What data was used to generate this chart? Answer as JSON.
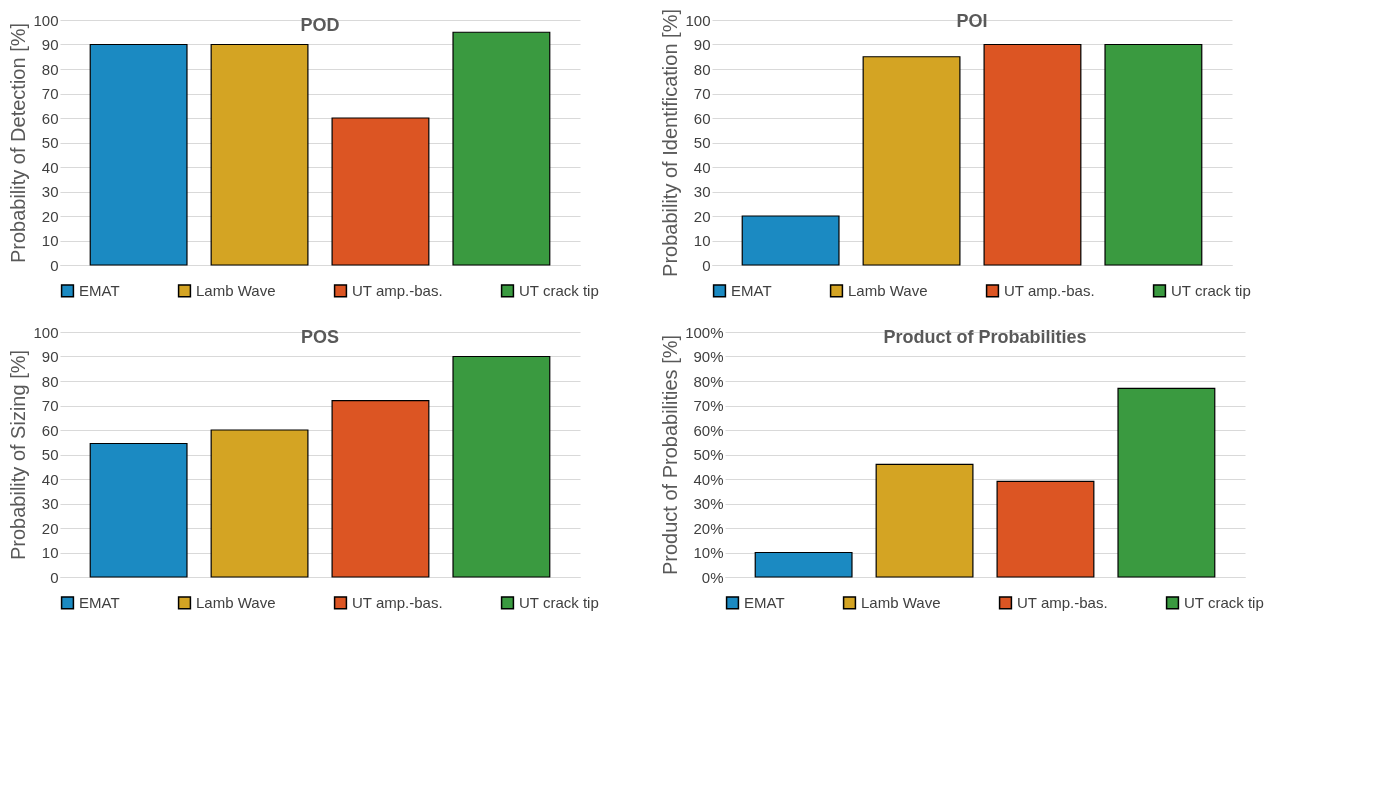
{
  "chart_data": [
    {
      "type": "bar",
      "title": "POD",
      "ylabel": "Probability of Detection [%]",
      "categories": [
        null
      ],
      "ylim": [
        0,
        100
      ],
      "yticks": [
        0,
        10,
        20,
        30,
        40,
        50,
        60,
        70,
        80,
        90,
        100
      ],
      "grid": "y",
      "legend": "bottom",
      "tick_labels": "y",
      "series": [
        {
          "name": "EMAT",
          "color": "#1b8ac2",
          "values": [
            90
          ]
        },
        {
          "name": "Lamb Wave",
          "color": "#d4a423",
          "values": [
            90
          ]
        },
        {
          "name": "UT amp.-bas.",
          "color": "#dc5523",
          "values": [
            60
          ]
        },
        {
          "name": "UT crack tip",
          "color": "#3a9a40",
          "values": [
            95
          ]
        }
      ]
    },
    {
      "type": "bar",
      "title": "POI",
      "ylabel": "Probability of Identification [%]",
      "categories": [
        null
      ],
      "ylim": [
        0,
        100
      ],
      "yticks": [
        0,
        10,
        20,
        30,
        40,
        50,
        60,
        70,
        80,
        90,
        100
      ],
      "grid": "y",
      "legend": "bottom",
      "tick_labels": "y",
      "series": [
        {
          "name": "EMAT",
          "color": "#1b8ac2",
          "values": [
            20
          ]
        },
        {
          "name": "Lamb Wave",
          "color": "#d4a423",
          "values": [
            85
          ]
        },
        {
          "name": "UT amp.-bas.",
          "color": "#dc5523",
          "values": [
            90
          ]
        },
        {
          "name": "UT crack tip",
          "color": "#3a9a40",
          "values": [
            90
          ]
        }
      ]
    },
    {
      "type": "bar",
      "title": "POS",
      "ylabel": "Probability of Sizing [%]",
      "categories": [
        null
      ],
      "ylim": [
        0,
        100
      ],
      "yticks": [
        0,
        10,
        20,
        30,
        40,
        50,
        60,
        70,
        80,
        90,
        100
      ],
      "grid": "y",
      "legend": "bottom",
      "tick_labels": "y",
      "series": [
        {
          "name": "EMAT",
          "color": "#1b8ac2",
          "values": [
            54.5
          ]
        },
        {
          "name": "Lamb Wave",
          "color": "#d4a423",
          "values": [
            60
          ]
        },
        {
          "name": "UT amp.-bas.",
          "color": "#dc5523",
          "values": [
            72
          ]
        },
        {
          "name": "UT crack tip",
          "color": "#3a9a40",
          "values": [
            90
          ]
        }
      ]
    },
    {
      "type": "bar",
      "title": "Product of Probabilities",
      "ylabel": "Product of Probabilities [%]",
      "categories": [
        null
      ],
      "ylim": [
        0,
        100
      ],
      "yticks": [
        {
          "value": 0,
          "label": "0%"
        },
        {
          "value": 10,
          "label": "10%"
        },
        {
          "value": 20,
          "label": "20%"
        },
        {
          "value": 30,
          "label": "30%"
        },
        {
          "value": 40,
          "label": "40%"
        },
        {
          "value": 50,
          "label": "50%"
        },
        {
          "value": 60,
          "label": "60%"
        },
        {
          "value": 70,
          "label": "70%"
        },
        {
          "value": 80,
          "label": "80%"
        },
        {
          "value": 90,
          "label": "90%"
        },
        {
          "value": 100,
          "label": "100%"
        }
      ],
      "grid": "y",
      "legend": "bottom",
      "tick_labels": "y",
      "series": [
        {
          "name": "EMAT",
          "color": "#1b8ac2",
          "values": [
            10
          ]
        },
        {
          "name": "Lamb Wave",
          "color": "#d4a423",
          "values": [
            46
          ]
        },
        {
          "name": "UT amp.-bas.",
          "color": "#dc5523",
          "values": [
            39
          ]
        },
        {
          "name": "UT crack tip",
          "color": "#3a9a40",
          "values": [
            77
          ]
        }
      ]
    }
  ]
}
